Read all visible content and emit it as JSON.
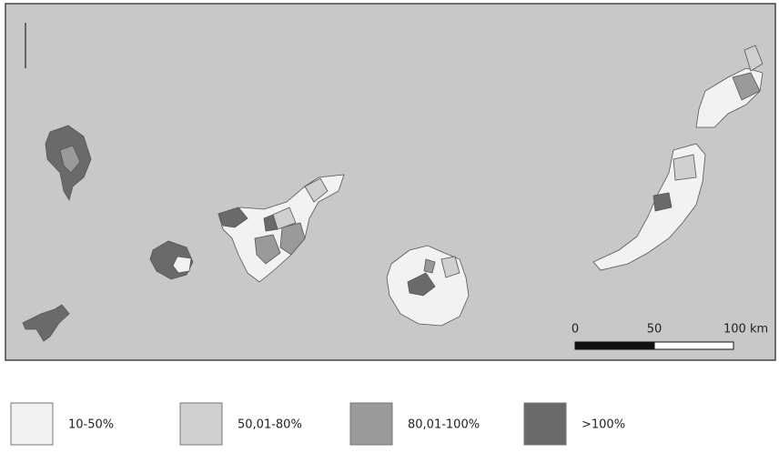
{
  "map": {
    "scale_bar": {
      "labels": [
        "0",
        "50",
        "100 km"
      ]
    },
    "legend": [
      {
        "label": "10-50%",
        "color": "#f2f2f2"
      },
      {
        "label": "50,01-80%",
        "color": "#d0d0d0"
      },
      {
        "label": "80,01-100%",
        "color": "#9a9a9a"
      },
      {
        "label": ">100%",
        "color": "#6a6a6a"
      }
    ]
  }
}
